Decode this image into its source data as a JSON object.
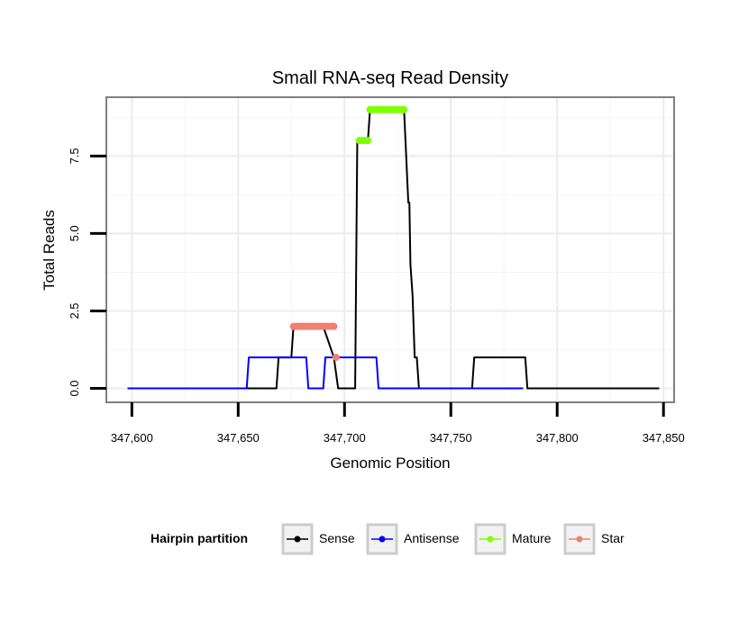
{
  "chart_data": {
    "type": "line",
    "title": "Small RNA-seq Read Density",
    "xlabel": "Genomic Position",
    "ylabel": "Total Reads",
    "xlim": [
      347588,
      347855
    ],
    "ylim": [
      -0.45,
      9.4
    ],
    "x_ticks": [
      347600,
      347650,
      347700,
      347750,
      347800,
      347850
    ],
    "x_tick_labels": [
      "347,600",
      "347,650",
      "347,700",
      "347,750",
      "347,800",
      "347,850"
    ],
    "y_ticks": [
      0,
      2.5,
      5,
      7.5
    ],
    "y_tick_labels": [
      "0.0",
      "2.5",
      "5.0",
      "7.5"
    ],
    "legend": {
      "title": "Hairpin partition",
      "position": "bottom",
      "entries": [
        {
          "label": "Sense",
          "color": "#000000"
        },
        {
          "label": "Antisense",
          "color": "#0000ff"
        },
        {
          "label": "Mature",
          "color": "#7fff00"
        },
        {
          "label": "Star",
          "color": "#f08070"
        }
      ]
    },
    "series": [
      {
        "name": "Sense",
        "color": "#000000",
        "style": "line",
        "x": [
          347598,
          347668,
          347669,
          347675,
          347676,
          347689,
          347690,
          347695,
          347697,
          347705,
          347706,
          347711,
          347712,
          347727,
          347728,
          347730,
          347730.5,
          347731,
          347732,
          347733,
          347734,
          347735,
          347736,
          347760,
          347761,
          347785,
          347786,
          347848
        ],
        "y": [
          0,
          0,
          1,
          1,
          2,
          2,
          2,
          1,
          0,
          0,
          8,
          8,
          9,
          9,
          9,
          6,
          6,
          4,
          3,
          1,
          1,
          0,
          0,
          0,
          1,
          1,
          0,
          0
        ]
      },
      {
        "name": "Antisense",
        "color": "#0000ff",
        "style": "line",
        "x": [
          347598,
          347654,
          347655,
          347682,
          347683,
          347690,
          347691,
          347715,
          347716,
          347784
        ],
        "y": [
          0,
          0,
          1,
          1,
          0,
          0,
          1,
          1,
          0,
          0
        ]
      },
      {
        "name": "Mature",
        "color": "#7fff00",
        "style": "points",
        "x": [
          347707,
          347708,
          347709,
          347710,
          347711,
          347712,
          347713,
          347714,
          347715,
          347716,
          347717,
          347718,
          347719,
          347720,
          347721,
          347722,
          347723,
          347724,
          347725,
          347726,
          347727,
          347728
        ],
        "y": [
          8,
          8,
          8,
          8,
          8,
          9,
          9,
          9,
          9,
          9,
          9,
          9,
          9,
          9,
          9,
          9,
          9,
          9,
          9,
          9,
          9,
          9
        ]
      },
      {
        "name": "Star",
        "color": "#f08070",
        "style": "points",
        "x": [
          347676,
          347677,
          347678,
          347679,
          347680,
          347681,
          347682,
          347683,
          347684,
          347685,
          347686,
          347687,
          347688,
          347689,
          347690,
          347691,
          347692,
          347693,
          347694,
          347695,
          347696
        ],
        "y": [
          2,
          2,
          2,
          2,
          2,
          2,
          2,
          2,
          2,
          2,
          2,
          2,
          2,
          2,
          2,
          2,
          2,
          2,
          2,
          2,
          1
        ]
      }
    ]
  }
}
